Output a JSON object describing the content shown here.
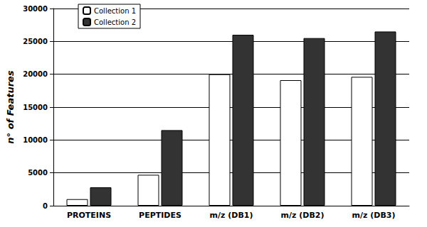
{
  "chart_data": {
    "type": "bar",
    "y_label": "n° of Features",
    "categories": [
      "PROTEINS",
      "PEPTIDES",
      "m/z (DB1)",
      "m/z (DB2)",
      "m/z (DB3)"
    ],
    "series": [
      {
        "name": "Collection 1",
        "color": "#ffffff",
        "values": [
          1000,
          4700,
          20000,
          19100,
          19600
        ]
      },
      {
        "name": "Collection 2",
        "color": "#333333",
        "values": [
          2800,
          11500,
          26000,
          25500,
          26500
        ]
      }
    ],
    "ylim": [
      0,
      30000
    ],
    "yticks": [
      0,
      5000,
      10000,
      15000,
      20000,
      25000,
      30000
    ],
    "grid": true,
    "legend": "upper left"
  }
}
